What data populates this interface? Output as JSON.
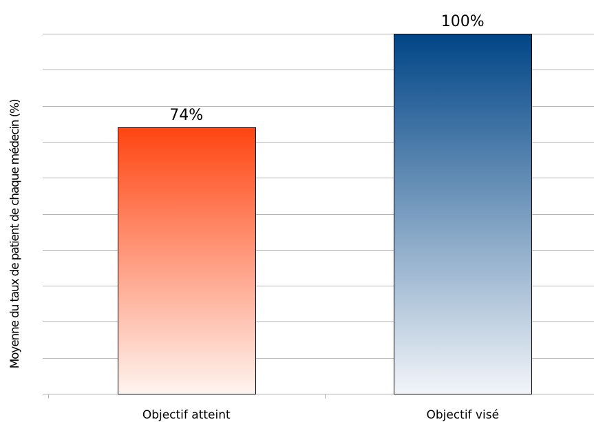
{
  "chart_data": {
    "type": "bar",
    "title": "",
    "xlabel": "",
    "ylabel": "Moyenne du taux de patient de chaque médecin (%)",
    "categories": [
      "Objectif atteint",
      "Objectif visé"
    ],
    "values": [
      74,
      100
    ],
    "value_labels": [
      "74%",
      "100%"
    ],
    "ylim": [
      0,
      100
    ],
    "grid": true,
    "legend": "none",
    "colors": {
      "bar_1_top": "#ff4511",
      "bar_1_bottom": "#fff4f0",
      "bar_2_top": "#004586",
      "bar_2_bottom": "#f2f5f9",
      "grid": "#b3b3b3",
      "bar_outline": "#000000"
    }
  }
}
